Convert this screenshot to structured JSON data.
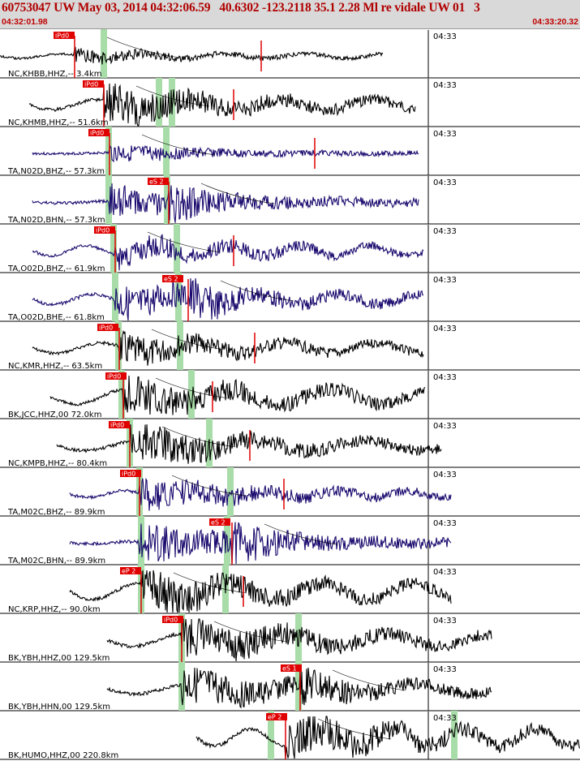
{
  "header": {
    "title": "60753047 UW May 03, 2014 04:32:06.59   40.6302 -123.2118 35.1 2.28 Ml re vidale UW 01   3",
    "start_time": "04:32:01.98",
    "end_time": "04:33:20.32"
  },
  "colors": {
    "pick": "#e00000",
    "wave_black": "#000000",
    "wave_navy": "#1a0a6e",
    "green_window": "#a8dca8",
    "header_bg": "#d9d9d9"
  },
  "traces": [
    {
      "label": "NC,KHBB,HHZ,-- 3.4km",
      "tick": "04:33",
      "pick": "iPd0",
      "color": "black",
      "seed": 1
    },
    {
      "label": "NC,KHMB,HHZ,-- 51.6km",
      "tick": "04:33",
      "pick": "iPd0",
      "color": "black",
      "seed": 2
    },
    {
      "label": "TA,N02D,BHZ,-- 57.3km",
      "tick": "04:33",
      "pick": "iPd0",
      "color": "navy",
      "seed": 3
    },
    {
      "label": "TA,N02D,BHN,-- 57.3km",
      "tick": "04:33",
      "pick": "eS 2",
      "color": "navy",
      "seed": 4
    },
    {
      "label": "TA,O02D,BHZ,-- 61.9km",
      "tick": "04:33",
      "pick": "iPd0",
      "color": "navy",
      "seed": 5
    },
    {
      "label": "TA,O02D,BHE,-- 61.8km",
      "tick": "04:33",
      "pick": "eS 2",
      "color": "navy",
      "seed": 6
    },
    {
      "label": "NC,KMR,HHZ,-- 63.5km",
      "tick": "04:33",
      "pick": "iPd0",
      "color": "black",
      "seed": 7
    },
    {
      "label": "BK,JCC,HHZ,00 72.0km",
      "tick": "04:33",
      "pick": "iPd0",
      "color": "black",
      "seed": 8
    },
    {
      "label": "NC,KMPB,HHZ,-- 80.4km",
      "tick": "04:33",
      "pick": "iPd0",
      "color": "black",
      "seed": 9
    },
    {
      "label": "TA,M02C,BHZ,-- 89.9km",
      "tick": "04:33",
      "pick": "iPd0",
      "color": "navy",
      "seed": 10
    },
    {
      "label": "TA,M02C,BHN,-- 89.9km",
      "tick": "04:33",
      "pick": "eS 2",
      "color": "navy",
      "seed": 11
    },
    {
      "label": "NC,KRP,HHZ,-- 90.0km",
      "tick": "04:33",
      "pick": "eP 2",
      "color": "black",
      "seed": 12
    },
    {
      "label": "BK,YBH,HHZ,00 129.5km",
      "tick": "04:33",
      "pick": "iPd0",
      "color": "black",
      "seed": 13
    },
    {
      "label": "BK,YBH,HHN,00 129.5km",
      "tick": "04:33",
      "pick": "eS 1",
      "color": "black",
      "seed": 14
    },
    {
      "label": "BK,HUMO,HHZ,00 220.8km",
      "tick": "04:33",
      "pick": "eP 2",
      "color": "black",
      "seed": 15
    }
  ]
}
